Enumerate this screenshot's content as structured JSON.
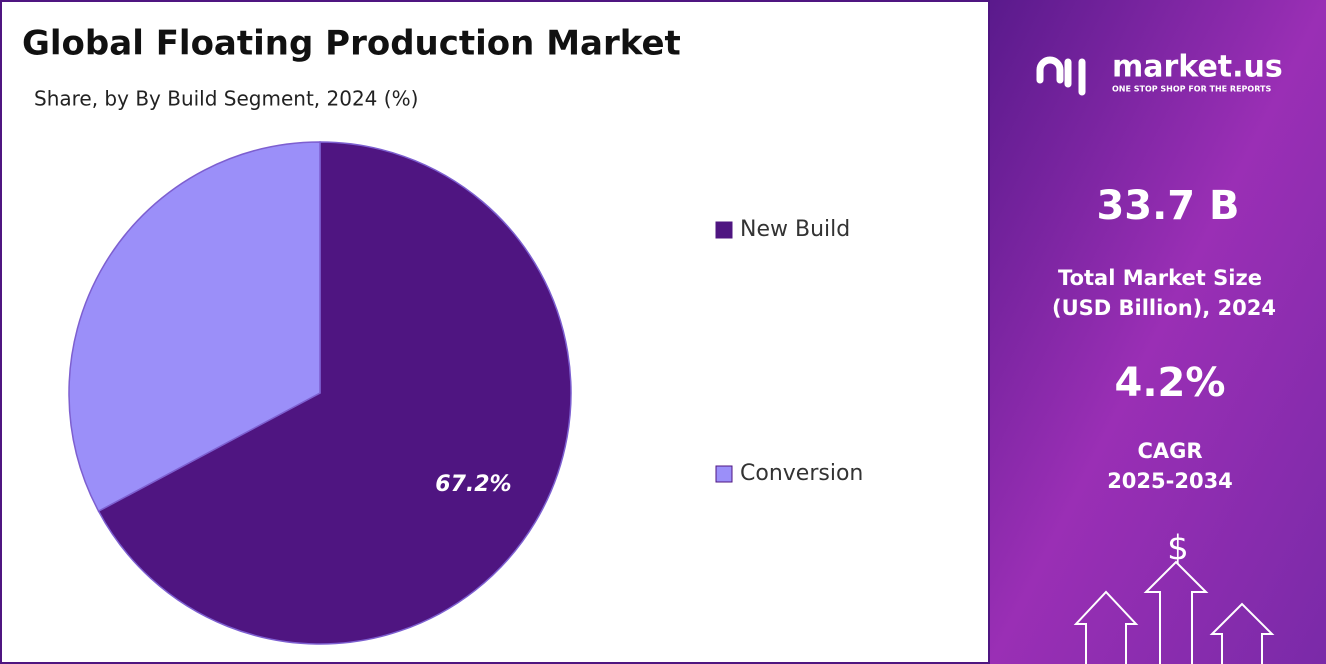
{
  "chart_data": {
    "type": "pie",
    "title": "Global Floating Production Market",
    "subtitle": "Share, by By Build Segment, 2024 (%)",
    "categories": [
      "New Build",
      "Conversion"
    ],
    "series": [
      {
        "name": "Share",
        "values": [
          67.2,
          32.8
        ],
        "value_labels": [
          "67.2%",
          null
        ]
      }
    ],
    "colors": [
      "#4f1581",
      "#9b8ff9"
    ],
    "legend": "right"
  },
  "side_panel": {
    "brand": "market.us",
    "tagline": "ONE STOP SHOP FOR THE REPORTS",
    "market_size": "33.7 B",
    "market_size_label": [
      "Total Market Size",
      "(USD Billion), 2024"
    ],
    "cagr": "4.2%",
    "cagr_label": [
      "CAGR",
      "2025-2034"
    ],
    "icon_symbol": "$"
  }
}
